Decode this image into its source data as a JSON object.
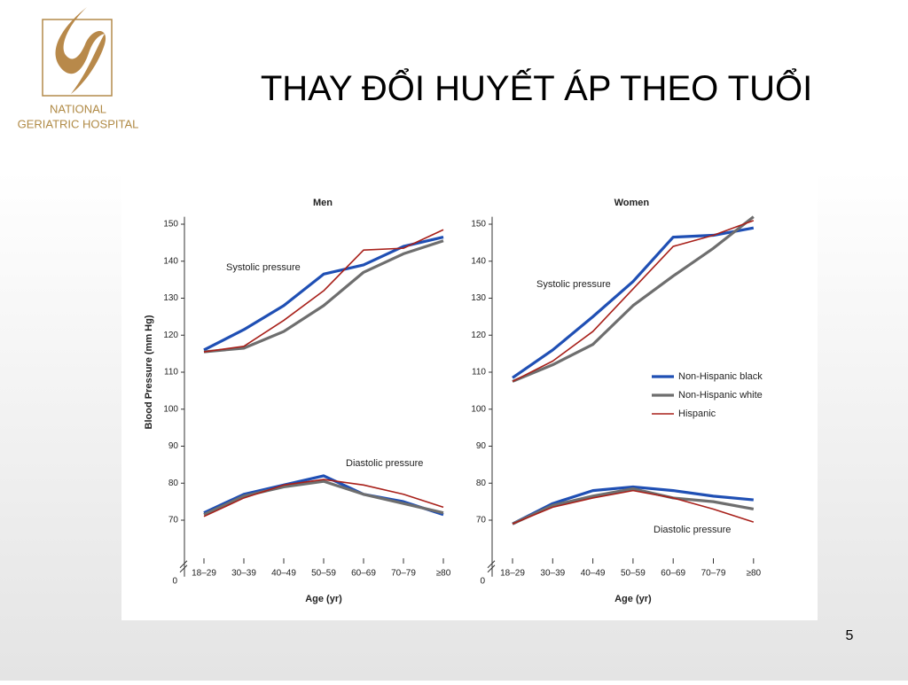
{
  "slide": {
    "title": "THAY ĐỔI HUYẾT ÁP THEO TUỔI",
    "logo_line1": "NATIONAL",
    "logo_line2": "GERIATRIC HOSPITAL",
    "page_number": "5"
  },
  "chart_data": [
    {
      "type": "line",
      "title": "Men",
      "ylabel": "Blood Pressure (mm Hg)",
      "xlabel": "Age (yr)",
      "categories": [
        "18–29",
        "30–39",
        "40–49",
        "50–59",
        "60–69",
        "70–79",
        "≥80"
      ],
      "ylim": [
        60,
        152
      ],
      "yticks": [
        70,
        80,
        90,
        100,
        110,
        120,
        130,
        140,
        150
      ],
      "y_break_label": "0",
      "annotations": {
        "systolic": "Systolic pressure",
        "diastolic": "Diastolic pressure"
      },
      "legend": false,
      "series": [
        {
          "name": "Non-Hispanic black",
          "color": "#1f4fb4",
          "systolic": [
            116,
            121.5,
            128,
            136.5,
            139,
            144,
            146.5
          ],
          "diastolic": [
            72,
            77,
            79.5,
            82,
            77,
            75,
            71.5
          ]
        },
        {
          "name": "Non-Hispanic white",
          "color": "#6e6e6e",
          "systolic": [
            115.5,
            116.5,
            121,
            128,
            137,
            142,
            145.5
          ],
          "diastolic": [
            71.5,
            76.5,
            79,
            80.5,
            77,
            74.5,
            72
          ]
        },
        {
          "name": "Hispanic",
          "color": "#a8201a",
          "systolic": [
            115.5,
            117,
            124,
            132,
            143,
            143.5,
            148.5
          ],
          "diastolic": [
            71,
            76,
            79.5,
            81,
            79.5,
            77,
            73.5
          ]
        }
      ]
    },
    {
      "type": "line",
      "title": "Women",
      "xlabel": "Age (yr)",
      "categories": [
        "18–29",
        "30–39",
        "40–49",
        "50–59",
        "60–69",
        "70–79",
        "≥80"
      ],
      "ylim": [
        60,
        152
      ],
      "yticks": [
        70,
        80,
        90,
        100,
        110,
        120,
        130,
        140,
        150
      ],
      "y_break_label": "0",
      "annotations": {
        "systolic": "Systolic pressure",
        "diastolic": "Diastolic pressure"
      },
      "legend": true,
      "series": [
        {
          "name": "Non-Hispanic black",
          "color": "#1f4fb4",
          "systolic": [
            108.5,
            116,
            125,
            134.5,
            146.5,
            147,
            149
          ],
          "diastolic": [
            69,
            74.5,
            78,
            79,
            78,
            76.5,
            75.5
          ]
        },
        {
          "name": "Non-Hispanic white",
          "color": "#6e6e6e",
          "systolic": [
            107.5,
            112,
            117.5,
            128,
            136,
            143.5,
            152
          ],
          "diastolic": [
            69,
            74,
            76.5,
            78.5,
            76,
            75,
            73
          ]
        },
        {
          "name": "Hispanic",
          "color": "#a8201a",
          "systolic": [
            107.5,
            113,
            121,
            132.5,
            144,
            147,
            151
          ],
          "diastolic": [
            69,
            73.5,
            76,
            78,
            76,
            73,
            69.5
          ]
        }
      ]
    }
  ]
}
